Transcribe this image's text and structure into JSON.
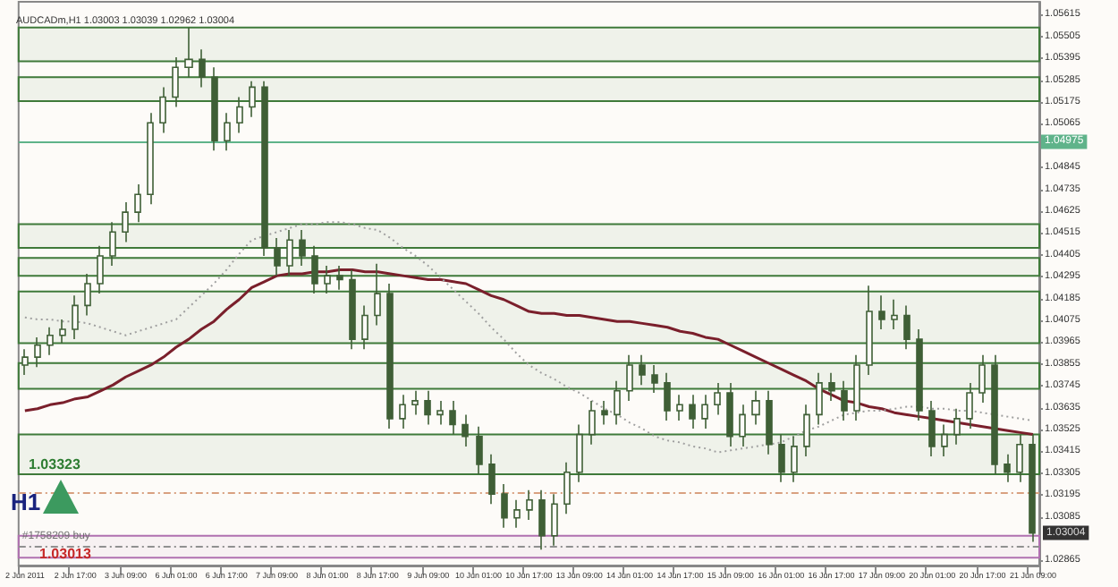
{
  "chart_data": {
    "type": "candlestick",
    "title": "AUDCADm,H1 1.03003 1.03039 1.02962 1.03004",
    "categories": [
      "2 Jun 2011",
      null,
      null,
      null,
      "2 Jun 17:00",
      null,
      null,
      null,
      "3 Jun 09:00",
      null,
      null,
      null,
      "6 Jun 01:00",
      null,
      null,
      null,
      "6 Jun 17:00",
      null,
      null,
      null,
      "7 Jun 09:00",
      null,
      null,
      null,
      "8 Jun 01:00",
      null,
      null,
      null,
      "8 Jun 17:00",
      null,
      null,
      null,
      "9 Jun 09:00",
      null,
      null,
      null,
      "10 Jun 01:00",
      null,
      null,
      null,
      "10 Jun 17:00",
      null,
      null,
      null,
      "13 Jun 09:00",
      null,
      null,
      null,
      "14 Jun 01:00",
      null,
      null,
      null,
      "14 Jun 17:00",
      null,
      null,
      null,
      "15 Jun 09:00",
      null,
      null,
      null,
      "16 Jun 01:00",
      null,
      null,
      null,
      "16 Jun 17:00",
      null,
      null,
      null,
      "17 Jun 09:00",
      null,
      null,
      null,
      "20 Jun 01:00",
      null,
      null,
      null,
      "20 Jun 17:00",
      null,
      null,
      null,
      "21 Jun 09:00"
    ],
    "series": [
      {
        "type": "candlestick",
        "color": "#3f5f36",
        "ohlc": [
          [
            1.0385,
            1.0393,
            1.038,
            1.0389
          ],
          [
            1.0389,
            1.0399,
            1.0384,
            1.0395
          ],
          [
            1.0395,
            1.0404,
            1.039,
            1.04
          ],
          [
            1.04,
            1.0408,
            1.0396,
            1.0403
          ],
          [
            1.0403,
            1.042,
            1.0398,
            1.0415
          ],
          [
            1.0415,
            1.0431,
            1.041,
            1.0426
          ],
          [
            1.0426,
            1.0445,
            1.0421,
            1.044
          ],
          [
            1.044,
            1.0457,
            1.0435,
            1.0452
          ],
          [
            1.0452,
            1.0467,
            1.0447,
            1.0462
          ],
          [
            1.0462,
            1.0476,
            1.0457,
            1.0471
          ],
          [
            1.0471,
            1.0512,
            1.0466,
            1.0507
          ],
          [
            1.0507,
            1.0525,
            1.0502,
            1.052
          ],
          [
            1.052,
            1.054,
            1.0515,
            1.0535
          ],
          [
            1.0535,
            1.0555,
            1.053,
            1.0539
          ],
          [
            1.0539,
            1.0544,
            1.0525,
            1.053
          ],
          [
            1.053,
            1.0535,
            1.0493,
            1.0498
          ],
          [
            1.0498,
            1.0512,
            1.0493,
            1.0507
          ],
          [
            1.0507,
            1.052,
            1.0502,
            1.0515
          ],
          [
            1.0515,
            1.0528,
            1.051,
            1.0525
          ],
          [
            1.0525,
            1.0528,
            1.044,
            1.0444
          ],
          [
            1.0444,
            1.0449,
            1.043,
            1.0435
          ],
          [
            1.0435,
            1.0453,
            1.043,
            1.0448
          ],
          [
            1.0448,
            1.0453,
            1.0435,
            1.044
          ],
          [
            1.044,
            1.0445,
            1.0421,
            1.0426
          ],
          [
            1.0426,
            1.0435,
            1.0421,
            1.043
          ],
          [
            1.043,
            1.0435,
            1.0423,
            1.0428
          ],
          [
            1.0428,
            1.0433,
            1.0393,
            1.0398
          ],
          [
            1.0398,
            1.0415,
            1.0393,
            1.041
          ],
          [
            1.041,
            1.0436,
            1.0405,
            1.0421
          ],
          [
            1.0421,
            1.0426,
            1.0353,
            1.0358
          ],
          [
            1.0358,
            1.037,
            1.0353,
            1.0365
          ],
          [
            1.0365,
            1.0372,
            1.036,
            1.0367
          ],
          [
            1.0367,
            1.0372,
            1.0355,
            1.036
          ],
          [
            1.036,
            1.0367,
            1.0355,
            1.0362
          ],
          [
            1.0362,
            1.0367,
            1.035,
            1.0355
          ],
          [
            1.0355,
            1.036,
            1.0344,
            1.0349
          ],
          [
            1.0349,
            1.0354,
            1.033,
            1.0335
          ],
          [
            1.0335,
            1.034,
            1.0315,
            1.032
          ],
          [
            1.032,
            1.0325,
            1.0303,
            1.0308
          ],
          [
            1.0308,
            1.0317,
            1.0303,
            1.0312
          ],
          [
            1.0312,
            1.0322,
            1.0307,
            1.0317
          ],
          [
            1.0317,
            1.0322,
            1.0292,
            1.0299
          ],
          [
            1.0299,
            1.032,
            1.0294,
            1.0315
          ],
          [
            1.0315,
            1.0336,
            1.031,
            1.0331
          ],
          [
            1.0331,
            1.0355,
            1.0326,
            1.035
          ],
          [
            1.035,
            1.0367,
            1.0345,
            1.0362
          ],
          [
            1.0362,
            1.0367,
            1.0355,
            1.036
          ],
          [
            1.036,
            1.0377,
            1.0355,
            1.0372
          ],
          [
            1.0372,
            1.039,
            1.0367,
            1.0385
          ],
          [
            1.0385,
            1.039,
            1.0375,
            1.038
          ],
          [
            1.038,
            1.0385,
            1.0371,
            1.0376
          ],
          [
            1.0376,
            1.0381,
            1.0357,
            1.0362
          ],
          [
            1.0362,
            1.037,
            1.0357,
            1.0365
          ],
          [
            1.0365,
            1.037,
            1.0353,
            1.0358
          ],
          [
            1.0358,
            1.037,
            1.0353,
            1.0365
          ],
          [
            1.0365,
            1.0376,
            1.036,
            1.0371
          ],
          [
            1.0371,
            1.0376,
            1.0344,
            1.0349
          ],
          [
            1.0349,
            1.0365,
            1.0344,
            1.036
          ],
          [
            1.036,
            1.0372,
            1.0355,
            1.0367
          ],
          [
            1.0367,
            1.0372,
            1.034,
            1.0345
          ],
          [
            1.0345,
            1.035,
            1.0326,
            1.0331
          ],
          [
            1.0331,
            1.0349,
            1.0326,
            1.0344
          ],
          [
            1.0344,
            1.0365,
            1.0339,
            1.036
          ],
          [
            1.036,
            1.0381,
            1.0355,
            1.0376
          ],
          [
            1.0376,
            1.0381,
            1.0367,
            1.0372
          ],
          [
            1.0372,
            1.0377,
            1.0357,
            1.0362
          ],
          [
            1.0362,
            1.039,
            1.0357,
            1.0385
          ],
          [
            1.0385,
            1.0425,
            1.038,
            1.0412
          ],
          [
            1.0412,
            1.042,
            1.0403,
            1.0408
          ],
          [
            1.0408,
            1.0418,
            1.0403,
            1.041
          ],
          [
            1.041,
            1.0415,
            1.0393,
            1.0398
          ],
          [
            1.0398,
            1.0403,
            1.0357,
            1.0362
          ],
          [
            1.0362,
            1.0367,
            1.0339,
            1.0344
          ],
          [
            1.0344,
            1.0355,
            1.0339,
            1.035
          ],
          [
            1.035,
            1.0363,
            1.0345,
            1.0358
          ],
          [
            1.0358,
            1.0376,
            1.0353,
            1.0371
          ],
          [
            1.0371,
            1.039,
            1.0366,
            1.0385
          ],
          [
            1.0385,
            1.039,
            1.033,
            1.0335
          ],
          [
            1.0335,
            1.034,
            1.0326,
            1.0331
          ],
          [
            1.0331,
            1.035,
            1.0326,
            1.0345
          ],
          [
            1.0345,
            1.035,
            1.0296,
            1.03004
          ]
        ]
      },
      {
        "type": "line",
        "color": "#7a1f2b",
        "values": [
          1.0362,
          1.0363,
          1.0365,
          1.0366,
          1.0368,
          1.0369,
          1.0372,
          1.0375,
          1.0379,
          1.0382,
          1.0385,
          1.0389,
          1.0394,
          1.0398,
          1.0403,
          1.0407,
          1.0413,
          1.0418,
          1.0424,
          1.0427,
          1.043,
          1.0431,
          1.0431,
          1.0432,
          1.0432,
          1.0433,
          1.0433,
          1.0432,
          1.0432,
          1.0431,
          1.043,
          1.0429,
          1.0428,
          1.0428,
          1.0427,
          1.0426,
          1.0423,
          1.042,
          1.0418,
          1.0415,
          1.0412,
          1.0411,
          1.0411,
          1.041,
          1.041,
          1.0409,
          1.0408,
          1.0407,
          1.0407,
          1.0406,
          1.0405,
          1.0404,
          1.0402,
          1.0401,
          1.0399,
          1.0398,
          1.0395,
          1.0392,
          1.0389,
          1.0386,
          1.0383,
          1.038,
          1.0377,
          1.0373,
          1.037,
          1.0367,
          1.0366,
          1.0364,
          1.0363,
          1.0361,
          1.036,
          1.0359,
          1.0358,
          1.0357,
          1.0356,
          1.0355,
          1.0354,
          1.0353,
          1.0352,
          1.0351,
          1.035
        ]
      },
      {
        "type": "line",
        "color": "#a0a0a0",
        "line_style": "dotted",
        "values": [
          1.0409,
          1.0408,
          1.0408,
          1.0407,
          1.0407,
          1.0406,
          1.0404,
          1.0402,
          1.04,
          1.0402,
          1.0404,
          1.0406,
          1.0408,
          1.0414,
          1.042,
          1.0426,
          1.0433,
          1.0441,
          1.0448,
          1.045,
          1.0452,
          1.0454,
          1.0456,
          1.0456,
          1.0457,
          1.0457,
          1.0456,
          1.0454,
          1.0453,
          1.0449,
          1.0444,
          1.044,
          1.0435,
          1.0429,
          1.0423,
          1.0417,
          1.0411,
          1.0404,
          1.0398,
          1.0391,
          1.0385,
          1.0381,
          1.0378,
          1.0374,
          1.0371,
          1.0367,
          1.0363,
          1.036,
          1.0356,
          1.0353,
          1.0349,
          1.0347,
          1.0346,
          1.0344,
          1.0343,
          1.0341,
          1.0342,
          1.0343,
          1.0344,
          1.0345,
          1.0346,
          1.0349,
          1.0352,
          1.0354,
          1.0357,
          1.036,
          1.0361,
          1.0362,
          1.0362,
          1.0363,
          1.0364,
          1.0364,
          1.0363,
          1.0363,
          1.0362,
          1.0362,
          1.0361,
          1.036,
          1.0359,
          1.0358,
          1.0357
        ]
      }
    ],
    "ylim": [
      1.0284,
      1.0568
    ],
    "yticks": [
      1.05615,
      1.05505,
      1.05395,
      1.05285,
      1.05175,
      1.05065,
      1.04845,
      1.04735,
      1.04625,
      1.04515,
      1.04405,
      1.04295,
      1.04185,
      1.04075,
      1.03965,
      1.03855,
      1.03745,
      1.03635,
      1.03525,
      1.03415,
      1.03305,
      1.03195,
      1.03085,
      1.02865
    ],
    "bands": [
      {
        "axis": "y",
        "from": 1.0538,
        "to": 1.0555,
        "color": "#3f7a3a"
      },
      {
        "axis": "y",
        "from": 1.0518,
        "to": 1.053,
        "color": "#3f7a3a"
      },
      {
        "axis": "y",
        "from": 1.0444,
        "to": 1.0456,
        "color": "#3f7a3a"
      },
      {
        "axis": "y",
        "from": 1.043,
        "to": 1.0439,
        "color": "#3f7a3a"
      },
      {
        "axis": "y",
        "from": 1.0396,
        "to": 1.0422,
        "color": "#3f7a3a"
      },
      {
        "axis": "y",
        "from": 1.0373,
        "to": 1.0386,
        "color": "#3f7a3a"
      },
      {
        "axis": "y",
        "from": 1.033,
        "to": 1.035,
        "color": "#3f7a3a"
      },
      {
        "axis": "y",
        "from": 1.0288,
        "to": 1.0299,
        "color": "#b070b0"
      }
    ],
    "ref_lines": [
      {
        "axis": "y",
        "value": 1.04975,
        "label": "1.04975",
        "color": "#5fb38a",
        "line_style": "solid"
      },
      {
        "axis": "y",
        "value": 1.03205,
        "color": "#d9a080",
        "line_style": "dashed"
      },
      {
        "axis": "y",
        "value": 1.0294,
        "label": "#1758209 buy",
        "color": "#909090",
        "line_style": "dashed"
      }
    ],
    "annotations": [
      "1.03323",
      "H1",
      "1.03013",
      {
        "text": "1.03004",
        "x": "21 Jun 09:00",
        "y": 1.03004
      }
    ],
    "grid": false
  }
}
